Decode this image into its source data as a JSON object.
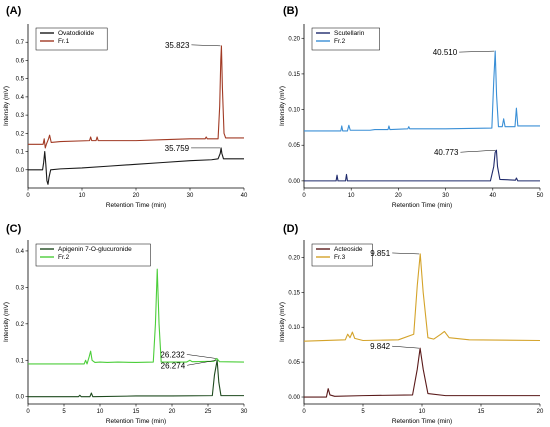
{
  "chart_data": [
    {
      "panel": "(A)",
      "type": "line",
      "xlabel": "Retention Time (min)",
      "ylabel": "Intensity (mV)",
      "xlim": [
        0,
        40
      ],
      "ylim": [
        -0.1,
        0.8
      ],
      "xticks": [
        "0",
        "10",
        "20",
        "30",
        "40"
      ],
      "yticks": [
        "0.0",
        "0.1",
        "0.2",
        "0.3",
        "0.4",
        "0.5",
        "0.6",
        "0.7"
      ],
      "legend_position": "top-left",
      "series": [
        {
          "name": "Ovatodiolide",
          "color": "#1a1a1a",
          "points": [
            [
              0,
              0.0
            ],
            [
              2.7,
              0.0
            ],
            [
              2.9,
              0.04
            ],
            [
              3.1,
              0.1
            ],
            [
              3.3,
              0.03
            ],
            [
              3.5,
              -0.06
            ],
            [
              3.7,
              -0.08
            ],
            [
              3.9,
              -0.04
            ],
            [
              4.2,
              0.0
            ],
            [
              6,
              0.005
            ],
            [
              10,
              0.01
            ],
            [
              15,
              0.02
            ],
            [
              20,
              0.03
            ],
            [
              25,
              0.04
            ],
            [
              30,
              0.05
            ],
            [
              34,
              0.055
            ],
            [
              35.2,
              0.06
            ],
            [
              35.6,
              0.09
            ],
            [
              35.76,
              0.12
            ],
            [
              35.9,
              0.09
            ],
            [
              36.2,
              0.06
            ],
            [
              38,
              0.06
            ],
            [
              40,
              0.06
            ]
          ]
        },
        {
          "name": "Fr.1",
          "color": "#a13a24",
          "points": [
            [
              0,
              0.14
            ],
            [
              2.8,
              0.14
            ],
            [
              3.0,
              0.17
            ],
            [
              3.2,
              0.12
            ],
            [
              3.4,
              0.14
            ],
            [
              3.8,
              0.17
            ],
            [
              4.0,
              0.19
            ],
            [
              4.3,
              0.15
            ],
            [
              6,
              0.155
            ],
            [
              11.4,
              0.16
            ],
            [
              11.6,
              0.18
            ],
            [
              11.8,
              0.16
            ],
            [
              12.6,
              0.16
            ],
            [
              12.8,
              0.18
            ],
            [
              13.0,
              0.16
            ],
            [
              20,
              0.16
            ],
            [
              25,
              0.165
            ],
            [
              30,
              0.17
            ],
            [
              32.8,
              0.17
            ],
            [
              33.0,
              0.18
            ],
            [
              33.2,
              0.17
            ],
            [
              35.2,
              0.17
            ],
            [
              35.5,
              0.35
            ],
            [
              35.7,
              0.6
            ],
            [
              35.82,
              0.68
            ],
            [
              36.0,
              0.45
            ],
            [
              36.3,
              0.2
            ],
            [
              36.6,
              0.175
            ],
            [
              40,
              0.175
            ]
          ]
        }
      ],
      "annotations": [
        {
          "text": "35.823",
          "x": 35.82,
          "y": 0.68
        },
        {
          "text": "35.759",
          "x": 35.76,
          "y": 0.12
        }
      ]
    },
    {
      "panel": "(B)",
      "type": "line",
      "xlabel": "Retention Time (min)",
      "ylabel": "Intensity (mV)",
      "xlim": [
        0,
        50
      ],
      "ylim": [
        -0.01,
        0.22
      ],
      "xticks": [
        "0",
        "10",
        "20",
        "30",
        "40",
        "50"
      ],
      "yticks": [
        "0.00",
        "0.05",
        "0.10",
        "0.15",
        "0.20"
      ],
      "legend_position": "top-left",
      "series": [
        {
          "name": "Scutellarin",
          "color": "#1f2a6b",
          "points": [
            [
              0,
              0.0
            ],
            [
              6.8,
              0.0
            ],
            [
              7.0,
              0.008
            ],
            [
              7.2,
              0.0
            ],
            [
              8.8,
              0.0
            ],
            [
              9.0,
              0.009
            ],
            [
              9.2,
              0.0
            ],
            [
              20,
              0.0
            ],
            [
              39.5,
              0.0
            ],
            [
              40.2,
              0.02
            ],
            [
              40.5,
              0.04
            ],
            [
              40.77,
              0.043
            ],
            [
              41.0,
              0.02
            ],
            [
              41.5,
              0.002
            ],
            [
              44.8,
              0.001
            ],
            [
              45.0,
              0.004
            ],
            [
              45.3,
              0.0
            ],
            [
              50,
              0.0
            ]
          ]
        },
        {
          "name": "Fr.2",
          "color": "#3a8fd6",
          "points": [
            [
              0,
              0.07
            ],
            [
              7.8,
              0.07
            ],
            [
              8.0,
              0.077
            ],
            [
              8.2,
              0.07
            ],
            [
              9.2,
              0.07
            ],
            [
              9.5,
              0.078
            ],
            [
              9.8,
              0.071
            ],
            [
              14,
              0.071
            ],
            [
              15,
              0.072
            ],
            [
              17.8,
              0.072
            ],
            [
              18,
              0.077
            ],
            [
              18.2,
              0.072
            ],
            [
              22,
              0.073
            ],
            [
              22.2,
              0.076
            ],
            [
              22.4,
              0.073
            ],
            [
              30,
              0.073
            ],
            [
              39.8,
              0.074
            ],
            [
              40.2,
              0.14
            ],
            [
              40.51,
              0.182
            ],
            [
              40.8,
              0.12
            ],
            [
              41.2,
              0.076
            ],
            [
              42,
              0.076
            ],
            [
              42.3,
              0.087
            ],
            [
              42.6,
              0.076
            ],
            [
              44.7,
              0.076
            ],
            [
              45.0,
              0.102
            ],
            [
              45.3,
              0.077
            ],
            [
              50,
              0.077
            ]
          ]
        }
      ],
      "annotations": [
        {
          "text": "40.510",
          "x": 40.51,
          "y": 0.182
        },
        {
          "text": "40.773",
          "x": 40.77,
          "y": 0.043
        }
      ]
    },
    {
      "panel": "(C)",
      "type": "line",
      "xlabel": "Retention Time (min)",
      "ylabel": "Intensity (mV)",
      "xlim": [
        0,
        30
      ],
      "ylim": [
        -0.02,
        0.43
      ],
      "xticks": [
        "0",
        "5",
        "10",
        "15",
        "20",
        "25",
        "30"
      ],
      "yticks": [
        "0.0",
        "0.1",
        "0.2",
        "0.3",
        "0.4"
      ],
      "legend_position": "top-left",
      "series": [
        {
          "name": "Apigenin 7-O-glucuronide",
          "color": "#1e4a1e",
          "points": [
            [
              0,
              0.0
            ],
            [
              7,
              0.0
            ],
            [
              7.2,
              0.004
            ],
            [
              7.4,
              0.0
            ],
            [
              8.6,
              0.0
            ],
            [
              8.8,
              0.01
            ],
            [
              9.0,
              0.0
            ],
            [
              15,
              0.002
            ],
            [
              20,
              0.002
            ],
            [
              25.6,
              0.003
            ],
            [
              25.9,
              0.06
            ],
            [
              26.27,
              0.1
            ],
            [
              26.5,
              0.04
            ],
            [
              26.8,
              0.003
            ],
            [
              30,
              0.003
            ]
          ]
        },
        {
          "name": "Fr.2",
          "color": "#4cce3a",
          "points": [
            [
              0,
              0.09
            ],
            [
              7.8,
              0.09
            ],
            [
              8.0,
              0.1
            ],
            [
              8.2,
              0.09
            ],
            [
              8.5,
              0.11
            ],
            [
              8.7,
              0.125
            ],
            [
              8.9,
              0.1
            ],
            [
              9.3,
              0.094
            ],
            [
              10,
              0.095
            ],
            [
              11,
              0.094
            ],
            [
              12.5,
              0.095
            ],
            [
              15,
              0.094
            ],
            [
              17.4,
              0.095
            ],
            [
              17.7,
              0.2
            ],
            [
              17.95,
              0.35
            ],
            [
              18.2,
              0.2
            ],
            [
              18.5,
              0.095
            ],
            [
              22,
              0.095
            ],
            [
              22.5,
              0.1
            ],
            [
              22.8,
              0.096
            ],
            [
              25.8,
              0.097
            ],
            [
              26.23,
              0.105
            ],
            [
              26.6,
              0.096
            ],
            [
              30,
              0.095
            ]
          ]
        }
      ],
      "annotations": [
        {
          "text": "26.232",
          "x": 26.23,
          "y": 0.105
        },
        {
          "text": "26.274",
          "x": 26.27,
          "y": 0.1
        }
      ]
    },
    {
      "panel": "(D)",
      "type": "line",
      "xlabel": "Retention Time (min)",
      "ylabel": "Intensity (mV)",
      "xlim": [
        0,
        20
      ],
      "ylim": [
        -0.01,
        0.225
      ],
      "xticks": [
        "0",
        "5",
        "10",
        "15",
        "20"
      ],
      "yticks": [
        "0.00",
        "0.05",
        "0.10",
        "0.15",
        "0.20"
      ],
      "legend_position": "top-left",
      "series": [
        {
          "name": "Acteoside",
          "color": "#5a1a1a",
          "points": [
            [
              0,
              0.0
            ],
            [
              1.9,
              0.0
            ],
            [
              2.05,
              0.012
            ],
            [
              2.2,
              0.003
            ],
            [
              2.6,
              0.001
            ],
            [
              5,
              0.002
            ],
            [
              9.2,
              0.003
            ],
            [
              9.6,
              0.04
            ],
            [
              9.84,
              0.07
            ],
            [
              10.1,
              0.04
            ],
            [
              10.5,
              0.005
            ],
            [
              12,
              0.002
            ],
            [
              20,
              0.002
            ]
          ]
        },
        {
          "name": "Fr.3",
          "color": "#d4a32a",
          "points": [
            [
              0,
              0.08
            ],
            [
              3.5,
              0.082
            ],
            [
              3.7,
              0.09
            ],
            [
              3.9,
              0.085
            ],
            [
              4.1,
              0.093
            ],
            [
              4.3,
              0.084
            ],
            [
              5,
              0.081
            ],
            [
              8,
              0.082
            ],
            [
              9.3,
              0.09
            ],
            [
              9.6,
              0.16
            ],
            [
              9.85,
              0.205
            ],
            [
              10.1,
              0.15
            ],
            [
              10.5,
              0.085
            ],
            [
              11,
              0.083
            ],
            [
              11.6,
              0.09
            ],
            [
              11.9,
              0.094
            ],
            [
              12.3,
              0.085
            ],
            [
              14,
              0.082
            ],
            [
              20,
              0.081
            ]
          ]
        }
      ],
      "annotations": [
        {
          "text": "9.851",
          "x": 9.85,
          "y": 0.205
        },
        {
          "text": "9.842",
          "x": 9.84,
          "y": 0.07
        }
      ]
    }
  ]
}
